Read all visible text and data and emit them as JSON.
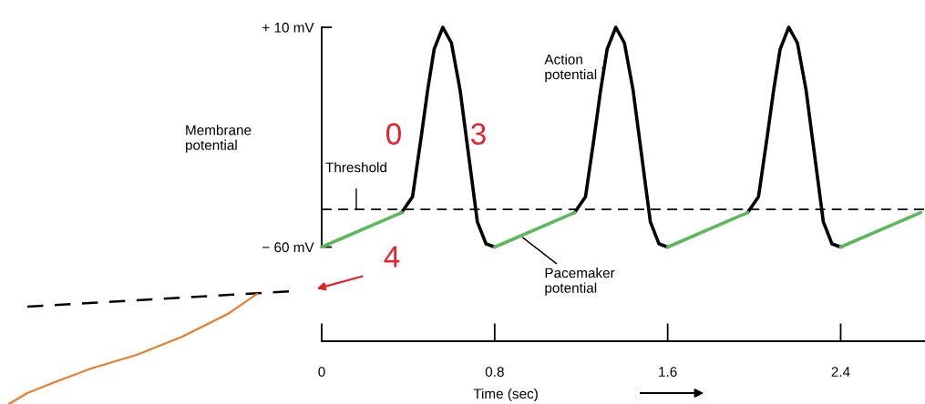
{
  "chart_data": {
    "type": "line",
    "ylabel": "Membrane\npotential",
    "xlabel": "Time (sec)",
    "series": [
      {
        "color": "#000000",
        "x": [
          0.37,
          0.42,
          0.46,
          0.49,
          0.52,
          0.56,
          0.6,
          0.64,
          0.68,
          0.72,
          0.76,
          0.8,
          0.9,
          1.17,
          1.22,
          1.26,
          1.29,
          1.32,
          1.36,
          1.4,
          1.44,
          1.48,
          1.52,
          1.56,
          1.6,
          1.7,
          1.97,
          2.02,
          2.06,
          2.09,
          2.12,
          2.16,
          2.2,
          2.24,
          2.28,
          2.32,
          2.36,
          2.4
        ],
        "values": [
          -49,
          -44,
          -25,
          -10,
          3,
          10,
          5,
          -10,
          -31,
          -52,
          -59,
          -60,
          null,
          -49,
          -44,
          -25,
          -10,
          3,
          10,
          5,
          -10,
          -31,
          -52,
          -59,
          -60,
          null,
          -49,
          -44,
          -25,
          -10,
          3,
          10,
          5,
          -10,
          -31,
          -52,
          -59,
          -60
        ]
      },
      {
        "color": "#5cb85c",
        "x": [
          0,
          0.37,
          0.5,
          0.8,
          1.17,
          1.3,
          1.6,
          1.97,
          2.1,
          2.4,
          2.77
        ],
        "values": [
          -60,
          -49,
          null,
          -60,
          -49,
          null,
          -60,
          -49,
          null,
          -60,
          -49
        ]
      }
    ],
    "xlim": [
      0,
      2.79
    ],
    "xticks": [
      0,
      0.8,
      1.6,
      2.4
    ],
    "ylim": [
      -90,
      10
    ],
    "yticks": [
      {
        "value": 10,
        "label": "+ 10 mV"
      },
      {
        "value": -60,
        "label": "− 60 mV"
      }
    ],
    "ref_lines": [
      {
        "axis": "y",
        "value": -48,
        "label": "Threshold",
        "color": "#000000",
        "line_style": "dashed"
      }
    ],
    "annotations": [
      {
        "text": "Action\npotential",
        "x": 1.3,
        "y": -3
      },
      {
        "text": "Pacemaker\npotential",
        "x": 0.93,
        "y": -57
      },
      "0",
      "3",
      "4"
    ],
    "grid": false,
    "legend": false,
    "marker": "none",
    "line_style": "solid"
  }
}
